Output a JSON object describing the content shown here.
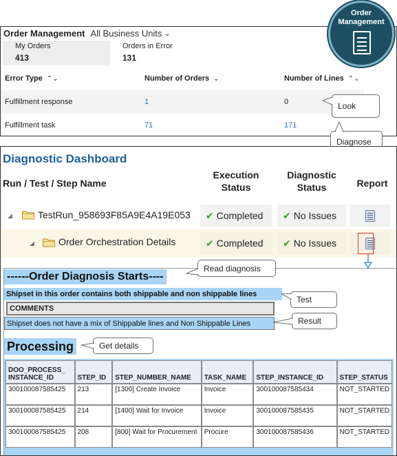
{
  "order_management": {
    "title": "Order Management",
    "scope": "All Business Units",
    "cards": [
      {
        "label": "My Orders",
        "count": "413"
      },
      {
        "label": "Orders in Error",
        "count": "131"
      }
    ],
    "table": {
      "headers": [
        "Error Type",
        "Number of Orders",
        "Number of Lines"
      ],
      "rows": [
        {
          "type": "Fulfillment response",
          "orders": "1",
          "lines": "0"
        },
        {
          "type": "Fulfillment task",
          "orders": "71",
          "lines": "171"
        }
      ]
    }
  },
  "badge": {
    "line1": "Order",
    "line2": "Management",
    "icon": "document-list-icon"
  },
  "callouts": {
    "look": "Look",
    "diagnose": "Diagnose",
    "read_diagnosis": "Read diagnosis",
    "test": "Test",
    "result": "Result",
    "get_details": "Get details"
  },
  "dashboard": {
    "title": "Diagnostic Dashboard",
    "headers": {
      "name": "Run / Test / Step Name",
      "execution_line1": "Execution",
      "execution_line2": "Status",
      "diagnostic_line1": "Diagnostic",
      "diagnostic_line2": "Status",
      "report": "Report"
    },
    "rows": [
      {
        "name": "TestRun_958693F85A9E4A19E053",
        "execution": "Completed",
        "diagnostic": "No Issues"
      },
      {
        "name": "Order Orchestration Details",
        "execution": "Completed",
        "diagnostic": "No Issues"
      }
    ]
  },
  "diagnosis": {
    "heading": "------Order Diagnosis Starts----",
    "test_line": "Shipset in this order contains both shippable and non shippable lines",
    "comments_label": "COMMENTS",
    "result_line": "Shipset does not have a mix of Shippable lines and Non Shippable Lines",
    "processing_heading": "Processing",
    "table": {
      "headers": [
        "DOO_PROCESS_INSTANCE_ID",
        "STEP_ID",
        "STEP_NUMBER_NAME",
        "TASK_NAME",
        "STEP_INSTANCE_ID",
        "STEP_STATUS"
      ],
      "header_wrap": [
        "DOO_PROCESS_",
        "INSTANCE_ID"
      ],
      "rows": [
        [
          "300100087585425",
          "213",
          "[1300] Create Invoice",
          "Invoice",
          "300100087585434",
          "NOT_STARTED"
        ],
        [
          "300100087585425",
          "214",
          "[1400] Wait for Invoice",
          "Invoice",
          "300100087585435",
          "NOT_STARTED"
        ],
        [
          "300100087585425",
          "208",
          "[800] Wait for Procurement",
          "Procure",
          "300100087585436",
          "NOT_STARTED"
        ]
      ]
    }
  },
  "colors": {
    "accent_blue": "#1f5f9e",
    "link_blue": "#2a6ebb",
    "highlight_blue": "#a8d4f5",
    "badge_teal": "#1d4e62",
    "check_green": "#3a9a2e",
    "report_outline_red": "#d83232"
  }
}
